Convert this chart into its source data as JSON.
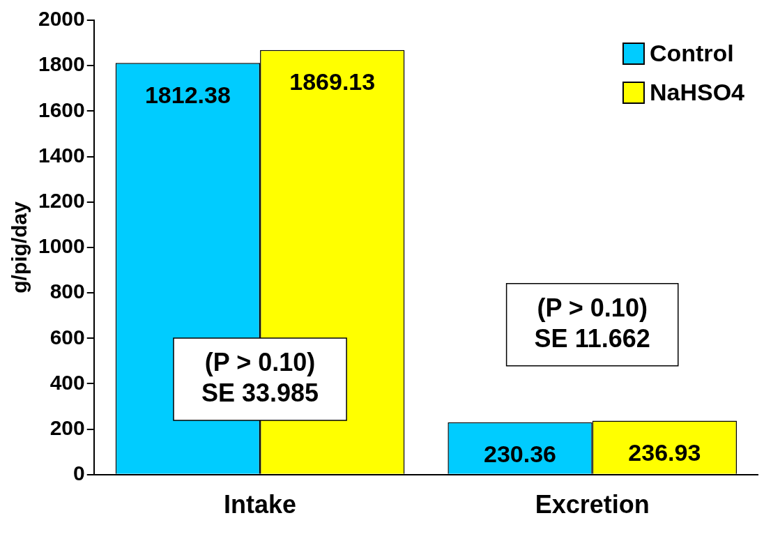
{
  "chart_data": {
    "type": "bar",
    "ylabel": "g/pig/day",
    "categories": [
      "Intake",
      "Excretion"
    ],
    "series": [
      {
        "name": "Control",
        "color": "#00ccff",
        "values": [
          1812.38,
          230.36
        ]
      },
      {
        "name": "NaHSO4",
        "color": "#ffff00",
        "values": [
          1869.13,
          236.93
        ]
      }
    ],
    "ylim": [
      0,
      2000
    ],
    "yticks": [
      0,
      200,
      400,
      600,
      800,
      1000,
      1200,
      1400,
      1600,
      1800,
      2000
    ],
    "grid": false,
    "legend": "top right",
    "data_labels": true,
    "annotations": [
      "(P > 0.10)\nSE 33.985",
      "(P > 0.10)\nSE 11.662"
    ]
  }
}
